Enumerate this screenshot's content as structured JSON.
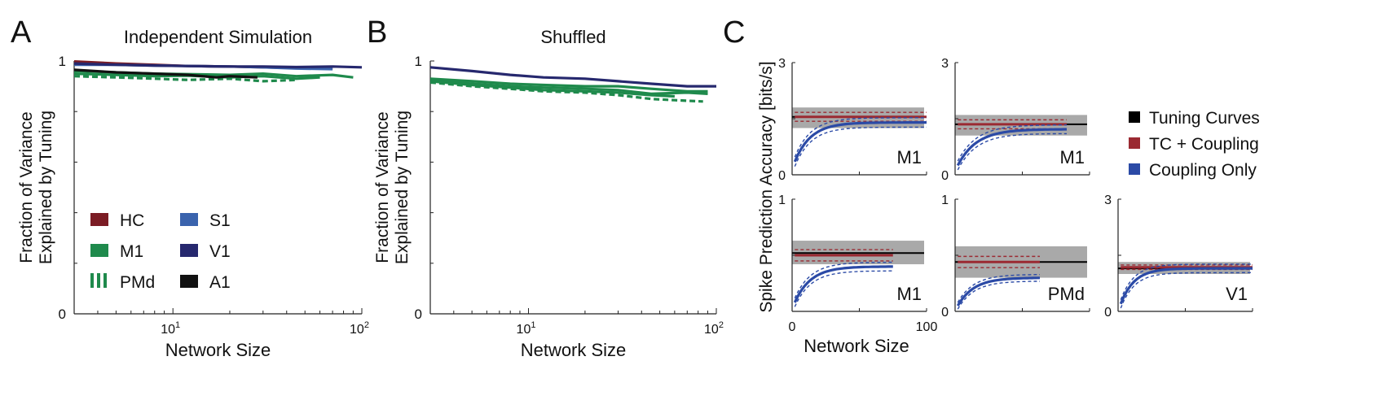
{
  "chart_data": [
    {
      "panel": "A",
      "type": "line",
      "title": "Independent Simulation",
      "xlabel": "Network Size",
      "ylabel": [
        "Fraction of Variance",
        "Explained by Tuning"
      ],
      "xscale": "log",
      "xlim": [
        3,
        100
      ],
      "ylim": [
        0,
        1
      ],
      "xticks": [
        {
          "v": 10,
          "base": "10",
          "exp": "1"
        },
        {
          "v": 100,
          "base": "10",
          "exp": "2"
        }
      ],
      "yticks": [
        {
          "v": 0,
          "label": "0"
        },
        {
          "v": 1,
          "label": "1"
        }
      ],
      "legend": [
        {
          "label": "HC",
          "color": "#7b1c24",
          "style": "solid"
        },
        {
          "label": "S1",
          "color": "#3a63ad",
          "style": "solid"
        },
        {
          "label": "M1",
          "color": "#1f8a4c",
          "style": "solid"
        },
        {
          "label": "V1",
          "color": "#26286e",
          "style": "solid"
        },
        {
          "label": "PMd",
          "color": "#1f8a4c",
          "style": "dashed"
        },
        {
          "label": "A1",
          "color": "#111111",
          "style": "solid"
        }
      ],
      "series": [
        {
          "color": "#7b1c24",
          "style": "solid",
          "x": [
            3,
            5,
            8,
            12,
            20,
            30,
            45,
            70
          ],
          "y": [
            0.998,
            0.99,
            0.985,
            0.98,
            0.978,
            0.975,
            0.972,
            0.97
          ]
        },
        {
          "color": "#3a63ad",
          "style": "solid",
          "x": [
            3,
            5,
            8,
            12,
            20,
            30,
            45,
            70
          ],
          "y": [
            0.985,
            0.985,
            0.982,
            0.98,
            0.978,
            0.975,
            0.97,
            0.968
          ]
        },
        {
          "color": "#26286e",
          "style": "solid",
          "x": [
            3,
            5,
            8,
            12,
            20,
            30,
            45,
            70,
            100
          ],
          "y": [
            0.99,
            0.985,
            0.982,
            0.98,
            0.978,
            0.978,
            0.976,
            0.978,
            0.975
          ]
        },
        {
          "color": "#1f8a4c",
          "style": "solid",
          "x": [
            3,
            5,
            8,
            12,
            20,
            30,
            45,
            70,
            90
          ],
          "y": [
            0.96,
            0.955,
            0.95,
            0.948,
            0.945,
            0.95,
            0.94,
            0.945,
            0.935
          ]
        },
        {
          "color": "#1f8a4c",
          "style": "solid",
          "x": [
            3,
            5,
            8,
            12,
            20,
            30,
            45,
            60
          ],
          "y": [
            0.95,
            0.945,
            0.94,
            0.942,
            0.935,
            0.94,
            0.93,
            0.935
          ]
        },
        {
          "color": "#1f8a4c",
          "style": "dashed",
          "x": [
            3,
            5,
            8,
            12,
            20,
            30,
            45
          ],
          "y": [
            0.94,
            0.935,
            0.93,
            0.925,
            0.93,
            0.92,
            0.925
          ]
        },
        {
          "color": "#111111",
          "style": "solid",
          "x": [
            3,
            5,
            8,
            12,
            17,
            20,
            28
          ],
          "y": [
            0.965,
            0.955,
            0.95,
            0.945,
            0.935,
            0.94,
            0.935
          ]
        }
      ]
    },
    {
      "panel": "B",
      "type": "line",
      "title": "Shuffled",
      "xlabel": "Network Size",
      "ylabel": [
        "Fraction of Variance",
        "Explained by Tuning"
      ],
      "xscale": "log",
      "xlim": [
        3,
        100
      ],
      "ylim": [
        0,
        1
      ],
      "xticks": [
        {
          "v": 10,
          "base": "10",
          "exp": "1"
        },
        {
          "v": 100,
          "base": "10",
          "exp": "2"
        }
      ],
      "yticks": [
        {
          "v": 0,
          "label": "0"
        },
        {
          "v": 1,
          "label": "1"
        }
      ],
      "series": [
        {
          "color": "#26286e",
          "style": "solid",
          "x": [
            3,
            5,
            8,
            12,
            20,
            30,
            45,
            70,
            100
          ],
          "y": [
            0.975,
            0.96,
            0.945,
            0.935,
            0.93,
            0.92,
            0.91,
            0.9,
            0.9
          ]
        },
        {
          "color": "#1f8a4c",
          "style": "solid",
          "x": [
            3,
            5,
            8,
            12,
            20,
            30,
            45,
            70,
            90
          ],
          "y": [
            0.93,
            0.92,
            0.91,
            0.905,
            0.9,
            0.9,
            0.89,
            0.88,
            0.88
          ]
        },
        {
          "color": "#1f8a4c",
          "style": "solid",
          "x": [
            3,
            5,
            8,
            12,
            20,
            30,
            45,
            70,
            90
          ],
          "y": [
            0.925,
            0.91,
            0.9,
            0.895,
            0.89,
            0.885,
            0.87,
            0.875,
            0.87
          ]
        },
        {
          "color": "#1f8a4c",
          "style": "solid",
          "x": [
            3,
            5,
            8,
            12,
            20,
            30,
            45,
            60
          ],
          "y": [
            0.92,
            0.905,
            0.895,
            0.885,
            0.88,
            0.875,
            0.865,
            0.86
          ]
        },
        {
          "color": "#1f8a4c",
          "style": "dashed",
          "x": [
            3,
            5,
            8,
            12,
            20,
            30,
            45,
            60,
            85
          ],
          "y": [
            0.915,
            0.9,
            0.89,
            0.88,
            0.875,
            0.865,
            0.85,
            0.845,
            0.84
          ]
        }
      ]
    },
    {
      "panel": "C",
      "type": "line",
      "ylabel": "Spike Prediction Accuracy [bits/s]",
      "xlabel": "Network Size",
      "legend": [
        {
          "label": "Tuning Curves",
          "color": "#000000"
        },
        {
          "label": "TC + Coupling",
          "color": "#9b2a32"
        },
        {
          "label": "Coupling Only",
          "color": "#2b4aa6"
        }
      ],
      "subplots": [
        {
          "label": "M1",
          "ylim": [
            0,
            3
          ],
          "yticks": [
            {
              "v": 0,
              "label": "0"
            },
            {
              "v": 3,
              "label": "3"
            }
          ],
          "xlim": [
            0,
            100
          ],
          "xticks": [],
          "tc": 1.55,
          "band": [
            1.25,
            1.8
          ],
          "tcc": 1.55,
          "tcc_end": 100,
          "tcc_ci": 0.12,
          "cpl_end": 100,
          "cpl_start": 0.35,
          "cpl_final": 1.4,
          "cpl_rate": 12
        },
        {
          "label": "M1",
          "ylim": [
            0,
            3
          ],
          "yticks": [
            {
              "v": 0,
              "label": "0"
            },
            {
              "v": 3,
              "label": "3"
            }
          ],
          "xlim": [
            0,
            100
          ],
          "xticks": [],
          "tc": 1.35,
          "band": [
            1.05,
            1.6
          ],
          "tcc": 1.35,
          "tcc_end": 83,
          "tcc_ci": 0.12,
          "cpl_end": 83,
          "cpl_start": 0.25,
          "cpl_final": 1.22,
          "cpl_rate": 14
        },
        {
          "label": "M1",
          "ylim": [
            0,
            1
          ],
          "yticks": [
            {
              "v": 0,
              "label": ""
            },
            {
              "v": 1,
              "label": "1"
            }
          ],
          "xlim": [
            0,
            100
          ],
          "xticks": [
            {
              "v": 0,
              "label": "0"
            },
            {
              "v": 100,
              "label": "100"
            }
          ],
          "tc": 0.52,
          "band": [
            0.42,
            0.63
          ],
          "tcc": 0.5,
          "tcc_end": 75,
          "tcc_ci": 0.05,
          "cpl_end": 75,
          "cpl_start": 0.08,
          "cpl_final": 0.4,
          "cpl_rate": 12
        },
        {
          "label": "PMd",
          "ylim": [
            0,
            1
          ],
          "yticks": [
            {
              "v": 0,
              "label": "0"
            },
            {
              "v": 1,
              "label": "1"
            }
          ],
          "xlim": [
            0,
            100
          ],
          "xticks": [],
          "tc": 0.44,
          "band": [
            0.3,
            0.58
          ],
          "tcc": 0.44,
          "tcc_end": 63,
          "tcc_ci": 0.05,
          "cpl_end": 63,
          "cpl_start": 0.05,
          "cpl_final": 0.3,
          "cpl_rate": 12
        },
        {
          "label": "V1",
          "ylim": [
            0,
            3
          ],
          "yticks": [
            {
              "v": 0,
              "label": "0"
            },
            {
              "v": 3,
              "label": "3"
            }
          ],
          "xlim": [
            0,
            100
          ],
          "xticks": [],
          "tc": 1.15,
          "band": [
            1.0,
            1.32
          ],
          "tcc": 1.18,
          "tcc_end": 100,
          "tcc_ci": 0.06,
          "cpl_end": 100,
          "cpl_start": 0.2,
          "cpl_final": 1.15,
          "cpl_rate": 10
        }
      ]
    }
  ]
}
